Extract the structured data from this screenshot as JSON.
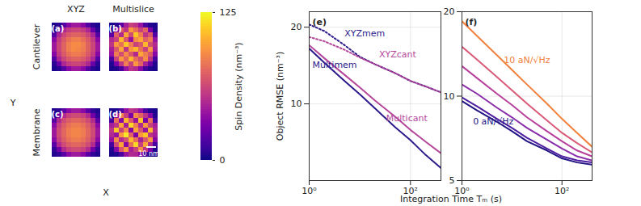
{
  "chart_data": [
    {
      "type": "heatmap",
      "x_label": "X",
      "y_label": "Y",
      "columns": [
        "XYZ",
        "Multislice"
      ],
      "rows": [
        "Cantilever",
        "Membrane"
      ],
      "tick_labels": false,
      "scale_bar": "10 nm",
      "colorbar": {
        "label": "Spin Density (nm⁻³)",
        "range": [
          0,
          125
        ],
        "ticks": [
          0,
          125
        ]
      },
      "panels": [
        {
          "title": "(a)",
          "cells": [
            [
              3,
              6,
              18,
              35,
              42,
              42,
              35,
              18,
              6,
              3
            ],
            [
              6,
              25,
              48,
              58,
              62,
              62,
              58,
              48,
              25,
              6
            ],
            [
              18,
              48,
              62,
              70,
              74,
              74,
              70,
              62,
              48,
              18
            ],
            [
              35,
              58,
              70,
              80,
              85,
              85,
              80,
              70,
              58,
              35
            ],
            [
              42,
              62,
              74,
              85,
              90,
              90,
              85,
              74,
              62,
              42
            ],
            [
              42,
              62,
              74,
              85,
              90,
              88,
              84,
              74,
              62,
              42
            ],
            [
              35,
              58,
              70,
              80,
              84,
              84,
              80,
              70,
              58,
              35
            ],
            [
              18,
              48,
              62,
              70,
              74,
              74,
              70,
              62,
              48,
              18
            ],
            [
              6,
              25,
              48,
              58,
              62,
              62,
              58,
              48,
              25,
              6
            ],
            [
              3,
              6,
              18,
              35,
              42,
              42,
              35,
              18,
              6,
              3
            ]
          ]
        },
        {
          "title": "(b)",
          "cells": [
            [
              2,
              5,
              20,
              45,
              60,
              55,
              40,
              15,
              4,
              2
            ],
            [
              5,
              35,
              70,
              55,
              95,
              80,
              60,
              75,
              30,
              4
            ],
            [
              20,
              75,
              50,
              100,
              65,
              110,
              85,
              55,
              70,
              18
            ],
            [
              50,
              60,
              105,
              70,
              40,
              90,
              100,
              75,
              85,
              40
            ],
            [
              55,
              95,
              80,
              110,
              85,
              60,
              70,
              105,
              65,
              50
            ],
            [
              45,
              70,
              100,
              55,
              95,
              105,
              80,
              60,
              95,
              45
            ],
            [
              40,
              85,
              65,
              90,
              70,
              50,
              100,
              85,
              70,
              35
            ],
            [
              15,
              60,
              95,
              75,
              105,
              80,
              65,
              90,
              55,
              15
            ],
            [
              4,
              30,
              55,
              85,
              60,
              95,
              75,
              45,
              25,
              4
            ],
            [
              2,
              4,
              15,
              40,
              55,
              50,
              35,
              12,
              4,
              2
            ]
          ]
        },
        {
          "title": "(c)",
          "cells": [
            [
              4,
              8,
              20,
              36,
              42,
              42,
              36,
              20,
              8,
              4
            ],
            [
              8,
              28,
              50,
              60,
              64,
              64,
              60,
              50,
              28,
              8
            ],
            [
              20,
              50,
              64,
              72,
              76,
              76,
              72,
              64,
              50,
              20
            ],
            [
              36,
              60,
              72,
              80,
              84,
              84,
              80,
              72,
              60,
              36
            ],
            [
              42,
              64,
              76,
              84,
              88,
              88,
              84,
              76,
              64,
              42
            ],
            [
              42,
              64,
              76,
              84,
              88,
              88,
              84,
              76,
              64,
              42
            ],
            [
              36,
              60,
              72,
              80,
              84,
              84,
              80,
              72,
              60,
              36
            ],
            [
              20,
              50,
              64,
              72,
              76,
              76,
              72,
              64,
              50,
              20
            ],
            [
              8,
              28,
              50,
              60,
              64,
              64,
              60,
              50,
              28,
              8
            ],
            [
              4,
              8,
              20,
              36,
              42,
              42,
              36,
              20,
              8,
              4
            ]
          ]
        },
        {
          "title": "(d)",
          "cells": [
            [
              2,
              4,
              15,
              40,
              55,
              50,
              38,
              14,
              4,
              2
            ],
            [
              4,
              40,
              85,
              60,
              30,
              90,
              75,
              55,
              35,
              4
            ],
            [
              15,
              80,
              35,
              105,
              70,
              40,
              110,
              30,
              80,
              15
            ],
            [
              45,
              55,
              100,
              45,
              115,
              85,
              50,
              95,
              60,
              45
            ],
            [
              55,
              110,
              60,
              90,
              35,
              100,
              70,
              40,
              105,
              50
            ],
            [
              50,
              40,
              95,
              120,
              75,
              30,
              95,
              110,
              55,
              45
            ],
            [
              40,
              90,
              50,
              65,
              105,
              80,
              45,
              70,
              95,
              35
            ],
            [
              14,
              65,
              100,
              35,
              80,
              115,
              60,
              100,
              50,
              14
            ],
            [
              4,
              35,
              70,
              95,
              45,
              60,
              90,
              55,
              30,
              4
            ],
            [
              2,
              4,
              15,
              40,
              50,
              48,
              35,
              12,
              4,
              2
            ]
          ]
        }
      ]
    },
    {
      "type": "line",
      "title": "(e)",
      "y_label": "Object RMSE (nm⁻³)",
      "x_label": "Integration Time Tₘ (s)",
      "log": true,
      "grid": true,
      "x": [
        1,
        2,
        5,
        10,
        20,
        50,
        100,
        200,
        400
      ],
      "xlim": [
        1,
        400
      ],
      "xticks": [
        {
          "value": 1,
          "label": "10⁰"
        },
        {
          "value": 100,
          "label": "10²"
        }
      ],
      "ylim": [
        5,
        23
      ],
      "yticks": [
        10,
        20
      ],
      "series": [
        {
          "name": "XYZmem",
          "color": "#2b1b8c",
          "line_style": "dotted",
          "values": [
            20.5,
            19.3,
            17,
            15.3,
            14.3,
            13.2,
            12.3,
            11.7,
            11.1
          ]
        },
        {
          "name": "XYZcant",
          "color": "#b5479b",
          "line_style": "dotted",
          "values": [
            18.3,
            17.6,
            16.3,
            15.2,
            14.3,
            13.2,
            12.3,
            11.7,
            11.1
          ]
        },
        {
          "name": "Multimem",
          "color": "#2b1b8c",
          "line_style": "solid",
          "values": [
            16.5,
            14.5,
            12.3,
            10.9,
            9.6,
            8.1,
            7.2,
            6.3,
            5.6
          ]
        },
        {
          "name": "Multicant",
          "color": "#b5479b",
          "line_style": "solid",
          "values": [
            17,
            15.1,
            13,
            11.6,
            10.3,
            8.9,
            7.9,
            7.1,
            6.4
          ]
        }
      ]
    },
    {
      "type": "line",
      "title": "(f)",
      "log": true,
      "grid": true,
      "x": [
        1,
        2,
        5,
        10,
        20,
        50,
        100,
        200,
        400
      ],
      "xlim": [
        1,
        400
      ],
      "xticks": [
        {
          "value": 1,
          "label": "10⁰"
        },
        {
          "value": 100,
          "label": "10²"
        }
      ],
      "ylim": [
        5,
        20
      ],
      "yticks": [
        5,
        10,
        20
      ],
      "series": [
        {
          "name": "10 aN/√Hz",
          "color": "#f0803c",
          "line_style": "solid",
          "values": [
            18.5,
            16.4,
            14,
            12.4,
            11,
            9.4,
            8.3,
            7.4,
            6.6
          ]
        },
        {
          "color": "#d85a78",
          "line_style": "solid",
          "values": [
            15,
            13.5,
            11.7,
            10.5,
            9.4,
            8.2,
            7.4,
            6.8,
            6.3
          ]
        },
        {
          "color": "#b7409c",
          "line_style": "solid",
          "values": [
            12.8,
            11.6,
            10.2,
            9.3,
            8.4,
            7.5,
            6.9,
            6.4,
            6.1
          ]
        },
        {
          "color": "#8a2daa",
          "line_style": "solid",
          "values": [
            11,
            10.2,
            9.1,
            8.4,
            7.7,
            7,
            6.5,
            6.1,
            5.9
          ]
        },
        {
          "color": "#4e1ea0",
          "line_style": "solid",
          "values": [
            9.9,
            9.2,
            8.3,
            7.7,
            7.1,
            6.5,
            6.1,
            5.9,
            5.8
          ]
        },
        {
          "name": "0 aN/√Hz",
          "color": "#221485",
          "line_style": "solid",
          "values": [
            9.6,
            8.9,
            8.1,
            7.5,
            6.9,
            6.4,
            6,
            5.8,
            5.7
          ]
        }
      ]
    }
  ]
}
